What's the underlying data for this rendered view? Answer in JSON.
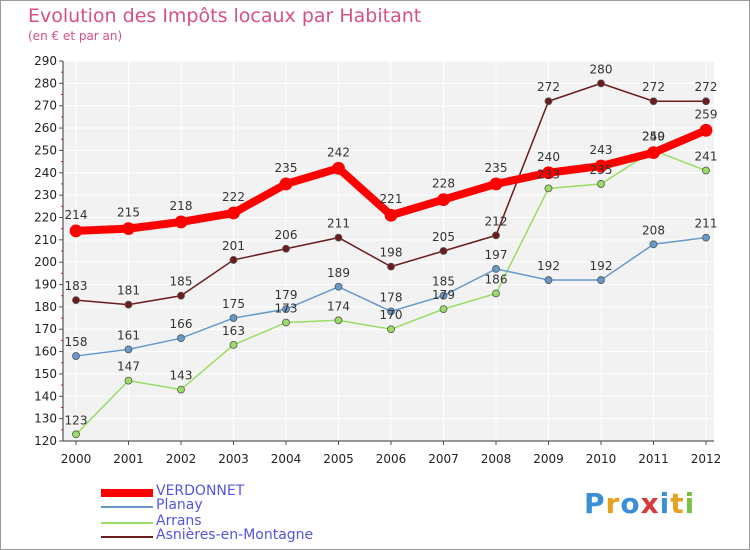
{
  "title": "Evolution des Impôts locaux par Habitant",
  "subtitle": "(en € et par an)",
  "logo": {
    "letters": [
      "P",
      "r",
      "o",
      "x",
      "i",
      "t",
      "i"
    ],
    "colors": [
      "#3a8fd6",
      "#e8a020",
      "#3a8fd6",
      "#d63a3a",
      "#3a8fd6",
      "#e8a020",
      "#7ac043"
    ]
  },
  "chart_data": {
    "type": "line",
    "title": "Evolution des Impôts locaux par Habitant",
    "subtitle": "(en € et par an)",
    "x": [
      "2000",
      "2001",
      "2002",
      "2003",
      "2004",
      "2005",
      "2006",
      "2007",
      "2008",
      "2009",
      "2010",
      "2011",
      "2012"
    ],
    "ylim": [
      120,
      290
    ],
    "yticks": [
      120,
      130,
      140,
      150,
      160,
      170,
      180,
      190,
      200,
      210,
      220,
      230,
      240,
      250,
      260,
      270,
      280,
      290
    ],
    "grid": true,
    "legend": "bottom-left",
    "series": [
      {
        "name": "VERDONNET",
        "color": "#ff0000",
        "values": [
          214,
          215,
          218,
          222,
          235,
          242,
          221,
          228,
          235,
          240,
          243,
          249,
          259
        ],
        "labels": [
          "214",
          "215",
          "218",
          "222",
          "235",
          "242",
          "221",
          "228",
          "235",
          "240",
          "243",
          "249",
          "259"
        ]
      },
      {
        "name": "Planay",
        "color": "#6699cc",
        "values": [
          158,
          161,
          166,
          175,
          179,
          189,
          178,
          185,
          197,
          192,
          192,
          208,
          211
        ],
        "labels": [
          "158",
          "161",
          "166",
          "175",
          "179",
          "189",
          "178",
          "185",
          "197",
          "192",
          "192",
          "208",
          "211"
        ]
      },
      {
        "name": "Arrans",
        "color": "#99dd66",
        "values": [
          123,
          147,
          143,
          163,
          173,
          174,
          170,
          179,
          186,
          233,
          235,
          250,
          241
        ],
        "labels": [
          "123",
          "147",
          "143",
          "163",
          "173",
          "174",
          "170",
          "179",
          "186",
          "233",
          "235",
          "250",
          "241"
        ]
      },
      {
        "name": "Asnières-en-Montagne",
        "color": "#6b1c1c",
        "values": [
          183,
          181,
          185,
          201,
          206,
          211,
          198,
          205,
          212,
          272,
          280,
          272,
          272
        ],
        "labels": [
          "183",
          "181",
          "185",
          "201",
          "206",
          "211",
          "198",
          "205",
          "212",
          "272",
          "280",
          "272",
          "272"
        ]
      }
    ]
  }
}
